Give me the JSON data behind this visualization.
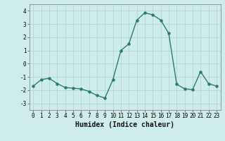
{
  "x": [
    0,
    1,
    2,
    3,
    4,
    5,
    6,
    7,
    8,
    9,
    10,
    11,
    12,
    13,
    14,
    15,
    16,
    17,
    18,
    19,
    20,
    21,
    22,
    23
  ],
  "y": [
    -1.7,
    -1.2,
    -1.1,
    -1.5,
    -1.8,
    -1.85,
    -1.9,
    -2.1,
    -2.4,
    -2.6,
    -1.2,
    1.0,
    1.5,
    3.3,
    3.85,
    3.7,
    3.3,
    2.3,
    -1.55,
    -1.9,
    -1.95,
    -0.6,
    -1.5,
    -1.7
  ],
  "line_color": "#2d7b6f",
  "marker": "o",
  "marker_size": 2.2,
  "bg_color": "#ceecea",
  "grid_color": "#b2d8d4",
  "xlabel": "Humidex (Indice chaleur)",
  "ylim": [
    -3.5,
    4.5
  ],
  "xlim": [
    -0.5,
    23.5
  ],
  "yticks": [
    -3,
    -2,
    -1,
    0,
    1,
    2,
    3,
    4
  ],
  "xticks": [
    0,
    1,
    2,
    3,
    4,
    5,
    6,
    7,
    8,
    9,
    10,
    11,
    12,
    13,
    14,
    15,
    16,
    17,
    18,
    19,
    20,
    21,
    22,
    23
  ],
  "tick_fontsize": 5.5,
  "xlabel_fontsize": 7.0,
  "linewidth": 1.0
}
